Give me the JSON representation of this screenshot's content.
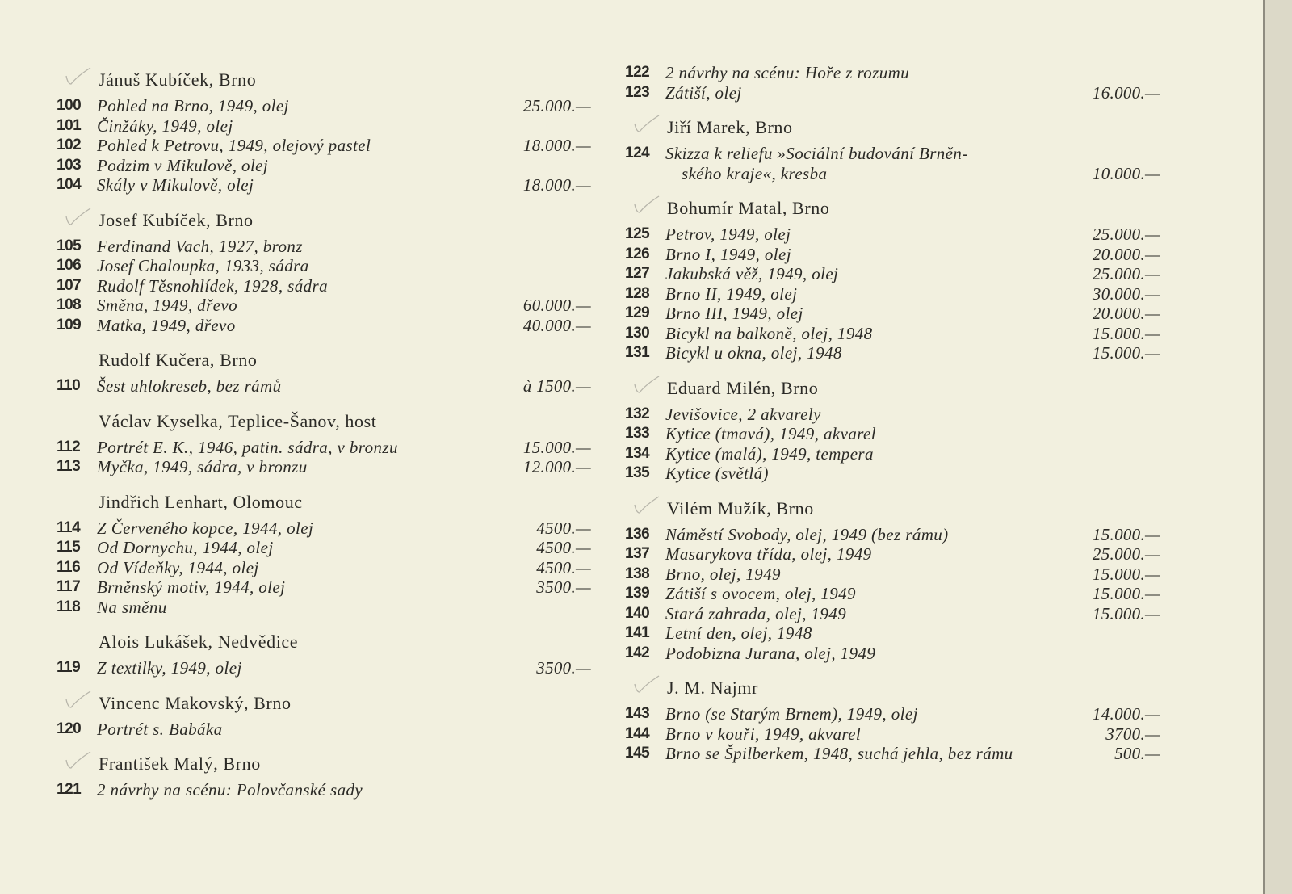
{
  "page": {
    "background": "#f2f0df",
    "text_color": "#2b2a26"
  },
  "columns": [
    {
      "id": "left",
      "blocks": [
        {
          "artist": "Jánuš Kubíček, Brno",
          "checked": true,
          "items": [
            {
              "num": "100",
              "title": "Pohled na Brno, 1949, olej",
              "price": "25.000.—"
            },
            {
              "num": "101",
              "title": "Činžáky, 1949, olej",
              "price": ""
            },
            {
              "num": "102",
              "title": "Pohled k Petrovu, 1949, olejový pastel",
              "price": "18.000.—"
            },
            {
              "num": "103",
              "title": "Podzim v Mikulově, olej",
              "price": ""
            },
            {
              "num": "104",
              "title": "Skály v Mikulově, olej",
              "price": "18.000.—"
            }
          ]
        },
        {
          "artist": "Josef Kubíček, Brno",
          "checked": true,
          "items": [
            {
              "num": "105",
              "title": "Ferdinand Vach, 1927, bronz",
              "price": ""
            },
            {
              "num": "106",
              "title": "Josef Chaloupka, 1933, sádra",
              "price": ""
            },
            {
              "num": "107",
              "title": "Rudolf Těsnohlídek, 1928, sádra",
              "price": ""
            },
            {
              "num": "108",
              "title": "Směna, 1949, dřevo",
              "price": "60.000.—"
            },
            {
              "num": "109",
              "title": "Matka, 1949, dřevo",
              "price": "40.000.—"
            }
          ]
        },
        {
          "artist": "Rudolf Kučera, Brno",
          "checked": false,
          "items": [
            {
              "num": "110",
              "title": "Šest uhlokreseb, bez rámů",
              "price": "à 1500.—"
            }
          ]
        },
        {
          "artist": "Václav Kyselka, Teplice-Šanov, host",
          "checked": false,
          "items": [
            {
              "num": "112",
              "title": "Portrét E. K., 1946, patin. sádra, v bronzu",
              "price": "15.000.—"
            },
            {
              "num": "113",
              "title": "Myčka, 1949, sádra, v bronzu",
              "price": "12.000.—"
            }
          ]
        },
        {
          "artist": "Jindřich Lenhart, Olomouc",
          "checked": false,
          "items": [
            {
              "num": "114",
              "title": "Z Červeného kopce, 1944, olej",
              "price": "4500.—"
            },
            {
              "num": "115",
              "title": "Od Dornychu, 1944, olej",
              "price": "4500.—"
            },
            {
              "num": "116",
              "title": "Od Vídeňky, 1944, olej",
              "price": "4500.—"
            },
            {
              "num": "117",
              "title": "Brněnský motiv, 1944, olej",
              "price": "3500.—"
            },
            {
              "num": "118",
              "title": "Na směnu",
              "price": ""
            }
          ]
        },
        {
          "artist": "Alois Lukášek, Nedvědice",
          "checked": false,
          "items": [
            {
              "num": "119",
              "title": "Z textilky, 1949, olej",
              "price": "3500.—"
            }
          ]
        },
        {
          "artist": "Vincenc Makovský, Brno",
          "checked": true,
          "items": [
            {
              "num": "120",
              "title": "Portrét s. Babáka",
              "price": ""
            }
          ]
        },
        {
          "artist": "František Malý, Brno",
          "checked": true,
          "items": [
            {
              "num": "121",
              "title": "2 návrhy na scénu: Polovčanské sady",
              "price": ""
            }
          ]
        }
      ]
    },
    {
      "id": "right",
      "blocks": [
        {
          "artist": "",
          "checked": false,
          "items": [
            {
              "num": "122",
              "title": "2 návrhy na scénu: Hoře z rozumu",
              "price": ""
            },
            {
              "num": "123",
              "title": "Zátiší, olej",
              "price": "16.000.—"
            }
          ]
        },
        {
          "artist": "Jiří Marek, Brno",
          "checked": true,
          "items": [
            {
              "num": "124",
              "title": "Skizza k reliefu »Sociální budování Brněn-",
              "title_cont": "ského kraje«, kresba",
              "price": "10.000.—"
            }
          ]
        },
        {
          "artist": "Bohumír Matal, Brno",
          "checked": true,
          "items": [
            {
              "num": "125",
              "title": "Petrov, 1949, olej",
              "price": "25.000.—"
            },
            {
              "num": "126",
              "title": "Brno I, 1949, olej",
              "price": "20.000.—"
            },
            {
              "num": "127",
              "title": "Jakubská věž, 1949, olej",
              "price": "25.000.—"
            },
            {
              "num": "128",
              "title": "Brno II, 1949, olej",
              "price": "30.000.—"
            },
            {
              "num": "129",
              "title": "Brno III, 1949, olej",
              "price": "20.000.—"
            },
            {
              "num": "130",
              "title": "Bicykl na balkoně, olej, 1948",
              "price": "15.000.—"
            },
            {
              "num": "131",
              "title": "Bicykl u okna, olej, 1948",
              "price": "15.000.—"
            }
          ]
        },
        {
          "artist": "Eduard Milén, Brno",
          "checked": true,
          "items": [
            {
              "num": "132",
              "title": "Jevišovice, 2 akvarely",
              "price": ""
            },
            {
              "num": "133",
              "title": "Kytice (tmavá), 1949, akvarel",
              "price": ""
            },
            {
              "num": "134",
              "title": "Kytice (malá), 1949, tempera",
              "price": ""
            },
            {
              "num": "135",
              "title": "Kytice (světlá)",
              "price": ""
            }
          ]
        },
        {
          "artist": "Vilém Mužík, Brno",
          "checked": true,
          "items": [
            {
              "num": "136",
              "title": "Náměstí Svobody, olej, 1949 (bez rámu)",
              "price": "15.000.—"
            },
            {
              "num": "137",
              "title": "Masarykova třída, olej, 1949",
              "price": "25.000.—"
            },
            {
              "num": "138",
              "title": "Brno, olej, 1949",
              "price": "15.000.—"
            },
            {
              "num": "139",
              "title": "Zátiší s ovocem, olej, 1949",
              "price": "15.000.—"
            },
            {
              "num": "140",
              "title": "Stará zahrada, olej, 1949",
              "price": "15.000.—"
            },
            {
              "num": "141",
              "title": "Letní den, olej, 1948",
              "price": ""
            },
            {
              "num": "142",
              "title": "Podobizna Jurana, olej, 1949",
              "price": ""
            }
          ]
        },
        {
          "artist": "J. M. Najmr",
          "checked": true,
          "items": [
            {
              "num": "143",
              "title": "Brno (se Starým Brnem), 1949, olej",
              "price": "14.000.—"
            },
            {
              "num": "144",
              "title": "Brno v kouři, 1949, akvarel",
              "price": "3700.—"
            },
            {
              "num": "145",
              "title": "Brno se Špilberkem, 1948, suchá jehla, bez rámu",
              "price": "500.—"
            }
          ]
        }
      ]
    }
  ]
}
